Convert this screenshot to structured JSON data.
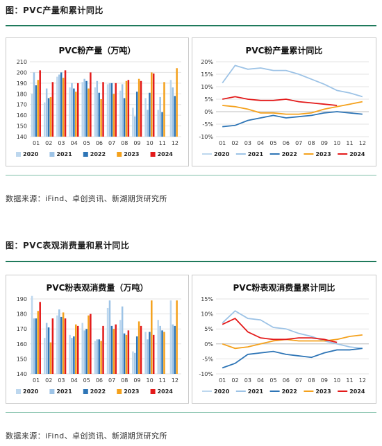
{
  "section1": {
    "title": "图：PVC产量和累计同比",
    "source": "数据来源：iFind、卓创资讯、新湖期货研究所"
  },
  "section2": {
    "title": "图：PVC表观消费量和累计同比",
    "source": "数据来源：iFind、卓创资讯、新湖期货研究所"
  },
  "colors": {
    "s2020": "#bdd7ee",
    "s2021": "#9dc3e6",
    "s2022": "#2e75b6",
    "s2023": "#f4a11c",
    "s2024": "#e31a1a",
    "accent": "#1f7a5c"
  },
  "chart_data": [
    {
      "type": "bar",
      "title": "PVC粉产量（万吨）",
      "categories": [
        "01",
        "02",
        "03",
        "04",
        "05",
        "06",
        "07",
        "08",
        "09",
        "10",
        "11",
        "12"
      ],
      "ylim": [
        140,
        210
      ],
      "yticks": [
        140,
        150,
        160,
        170,
        180,
        190,
        200,
        210
      ],
      "series": [
        {
          "name": "2020",
          "values": [
            180,
            172,
            196,
            186,
            191,
            186,
            189,
            183,
            167,
            176,
            165,
            193
          ]
        },
        {
          "name": "2021",
          "values": [
            200,
            185,
            198,
            190,
            194,
            192,
            190,
            189,
            159,
            165,
            177,
            186
          ]
        },
        {
          "name": "2022",
          "values": [
            188,
            176,
            200,
            185,
            192,
            181,
            190,
            176,
            182,
            181,
            163,
            178
          ]
        },
        {
          "name": "2023",
          "values": [
            193,
            177,
            195,
            182,
            185,
            175,
            180,
            192,
            194,
            200,
            191,
            204
          ]
        },
        {
          "name": "2024",
          "values": [
            202,
            191,
            202,
            190,
            200,
            191,
            190,
            193,
            192,
            199,
            null,
            null
          ]
        }
      ]
    },
    {
      "type": "line",
      "title": "PVC粉产量累计同比",
      "categories": [
        "01",
        "02",
        "03",
        "04",
        "05",
        "06",
        "07",
        "08",
        "09",
        "10",
        "11",
        "12"
      ],
      "ylim": [
        -10,
        20
      ],
      "yticks": [
        "-10%",
        "-5%",
        "0%",
        "5%",
        "10%",
        "15%",
        "20%"
      ],
      "series": [
        {
          "name": "2020",
          "values": [
            null,
            null,
            null,
            null,
            null,
            null,
            null,
            null,
            null,
            null,
            null,
            null
          ]
        },
        {
          "name": "2021",
          "values": [
            11.5,
            18.5,
            17,
            17.5,
            16.5,
            16.5,
            15,
            13,
            11,
            8.5,
            7.5,
            6
          ]
        },
        {
          "name": "2022",
          "values": [
            -6,
            -5.5,
            -3.5,
            -2.5,
            -1.5,
            -2.5,
            -2,
            -1.5,
            -0.5,
            0,
            -0.5,
            -1
          ]
        },
        {
          "name": "2023",
          "values": [
            2.5,
            2,
            1,
            -0.5,
            -0.5,
            -1,
            -1,
            -0.5,
            1,
            2,
            3,
            4
          ]
        },
        {
          "name": "2024",
          "values": [
            5,
            6,
            5,
            4.5,
            4.5,
            5,
            4,
            3.5,
            3,
            2.5,
            null,
            null
          ]
        }
      ]
    },
    {
      "type": "bar",
      "title": "PVC粉表观消费量（万吨）",
      "categories": [
        "01",
        "02",
        "03",
        "04",
        "05",
        "06",
        "07",
        "08",
        "09",
        "10",
        "11",
        "12"
      ],
      "ylim": [
        140,
        190
      ],
      "yticks": [
        140,
        150,
        160,
        170,
        180,
        190
      ],
      "series": [
        {
          "name": "2020",
          "values": [
            192,
            164,
            179,
            166,
            174,
            162,
            184,
            176,
            155,
            168,
            176,
            189
          ]
        },
        {
          "name": "2021",
          "values": [
            177,
            174,
            183,
            164,
            169,
            163,
            189,
            185,
            154,
            163,
            172,
            173
          ]
        },
        {
          "name": "2022",
          "values": [
            177,
            171,
            178,
            165,
            170,
            163,
            172,
            167,
            165,
            168,
            169,
            172
          ]
        },
        {
          "name": "2023",
          "values": [
            182,
            161,
            181,
            173,
            179,
            162,
            170,
            166,
            175,
            189,
            168,
            189
          ]
        },
        {
          "name": "2024",
          "values": [
            188,
            177,
            177,
            172,
            180,
            172,
            173,
            169,
            172,
            166,
            null,
            null
          ]
        }
      ]
    },
    {
      "type": "line",
      "title": "PVC粉表观消费量累计同比",
      "categories": [
        "01",
        "02",
        "03",
        "04",
        "05",
        "06",
        "07",
        "08",
        "09",
        "10",
        "11",
        "12"
      ],
      "ylim": [
        -10,
        15
      ],
      "yticks": [
        "-10%",
        "-5%",
        "0%",
        "5%",
        "10%",
        "15%"
      ],
      "series": [
        {
          "name": "2020",
          "values": [
            null,
            null,
            null,
            null,
            null,
            null,
            null,
            null,
            null,
            null,
            null,
            null
          ]
        },
        {
          "name": "2021",
          "values": [
            7,
            11,
            8.5,
            8,
            5.5,
            5,
            3.5,
            2.5,
            1,
            0,
            -1,
            -1.5
          ]
        },
        {
          "name": "2022",
          "values": [
            -8,
            -6.5,
            -3.5,
            -3,
            -2.5,
            -3.5,
            -4,
            -4.5,
            -3,
            -2,
            -2,
            -1.5
          ]
        },
        {
          "name": "2023",
          "values": [
            0,
            -1.5,
            -1,
            0,
            1,
            1.5,
            1,
            1,
            1,
            1.5,
            2.5,
            3
          ]
        },
        {
          "name": "2024",
          "values": [
            6.5,
            8.5,
            4,
            2,
            1.5,
            1.5,
            2,
            2,
            1.5,
            0.5,
            null,
            null
          ]
        }
      ]
    }
  ]
}
